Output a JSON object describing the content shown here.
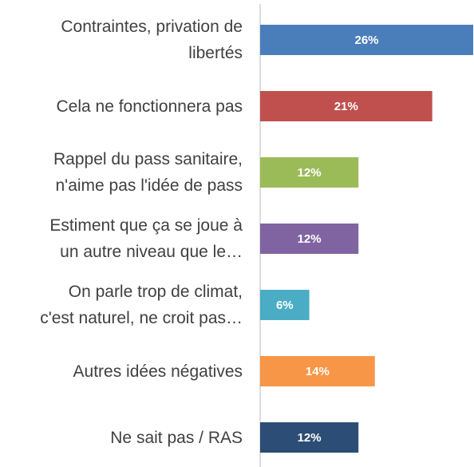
{
  "chart_data": {
    "type": "bar",
    "orientation": "horizontal",
    "categories": [
      "Contraintes, privation de\nlibertés",
      "Cela ne fonctionnera pas",
      "Rappel du pass sanitaire,\nn'aime pas l'idée de pass",
      "Estiment que ça se joue à\nun autre niveau que le…",
      "On parle trop de climat,\nc'est naturel, ne croit pas…",
      "Autres idées négatives",
      "Ne sait pas / RAS"
    ],
    "values": [
      26,
      21,
      12,
      12,
      6,
      14,
      12
    ],
    "value_labels": [
      "26%",
      "21%",
      "12%",
      "12%",
      "6%",
      "14%",
      "12%"
    ],
    "colors": [
      "#4a7ebb",
      "#c0504d",
      "#9bbb59",
      "#8064a2",
      "#4bacc6",
      "#f79646",
      "#2c4d75"
    ]
  }
}
